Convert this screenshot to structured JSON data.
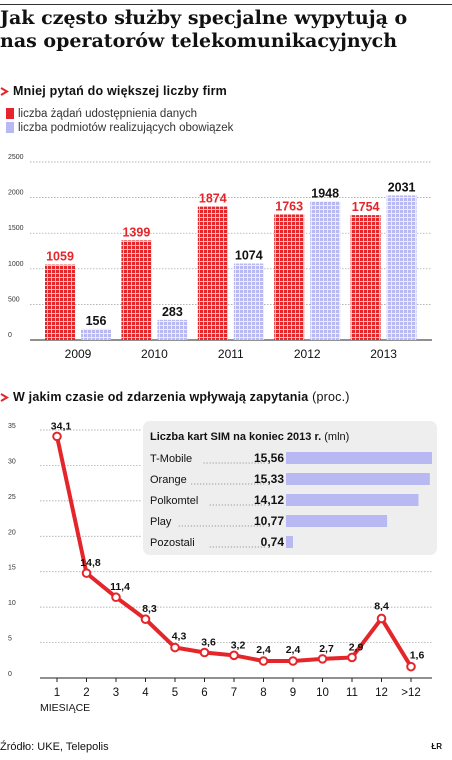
{
  "title": "Jak często służby specjalne wypytują o nas operatorów telekomunikacyjnych",
  "colors": {
    "red": "#e4262b",
    "lilac": "#b8b8f2",
    "panel": "#eeeeee",
    "dark": "#222222"
  },
  "chart_data": [
    {
      "type": "bar",
      "title": "Mniej pytań do większej liczby firm",
      "categories": [
        "2009",
        "2010",
        "2011",
        "2012",
        "2013"
      ],
      "series": [
        {
          "name": "liczba żądań udostępnienia danych",
          "values": [
            1059,
            1399,
            1874,
            1763,
            1754
          ]
        },
        {
          "name": "liczba podmiotów realizujących obowiązek",
          "values": [
            156,
            283,
            1074,
            1948,
            2031
          ]
        }
      ],
      "data_labels": [
        [
          "1059",
          "1399",
          "1874",
          "1763",
          "1754"
        ],
        [
          "156",
          "283",
          "1074",
          "1948",
          "2031"
        ]
      ],
      "yticks": [
        "0",
        "500",
        "1000",
        "1500",
        "2000",
        "2500"
      ],
      "ylim": [
        0,
        2500
      ],
      "grid": true,
      "legend": "top-left"
    },
    {
      "type": "line",
      "title": "W jakim czasie od zdarzenia wpływają zapytania",
      "unit": "(proc.)",
      "x": [
        "1",
        "2",
        "3",
        "4",
        "5",
        "6",
        "7",
        "8",
        "9",
        "10",
        "11",
        "12",
        ">12"
      ],
      "xlabel": "MIESIĄCE",
      "values": [
        34.1,
        14.8,
        11.4,
        8.3,
        4.3,
        3.6,
        3.2,
        2.4,
        2.4,
        2.7,
        2.9,
        8.4,
        1.6
      ],
      "data_labels": [
        "34,1",
        "14,8",
        "11,4",
        "8,3",
        "4,3",
        "3,6",
        "3,2",
        "2,4",
        "2,4",
        "2,7",
        "2,9",
        "8,4",
        "1,6"
      ],
      "yticks": [
        "0",
        "5",
        "10",
        "15",
        "20",
        "25",
        "30",
        "35"
      ],
      "ylim": [
        0,
        35
      ],
      "grid": true
    },
    {
      "type": "bar",
      "orientation": "horizontal",
      "title": "Liczba kart SIM na koniec 2013 r.",
      "unit": "(mln)",
      "categories": [
        "T-Mobile",
        "Orange",
        "Polkomtel",
        "Play",
        "Pozostali"
      ],
      "values": [
        15.56,
        15.33,
        14.12,
        10.77,
        0.74
      ],
      "data_labels": [
        "15,56",
        "15,33",
        "14,12",
        "10,77",
        "0,74"
      ]
    }
  ],
  "footer": {
    "source": "Źródło: UKE, Telepolis",
    "mark": "ŁR"
  }
}
